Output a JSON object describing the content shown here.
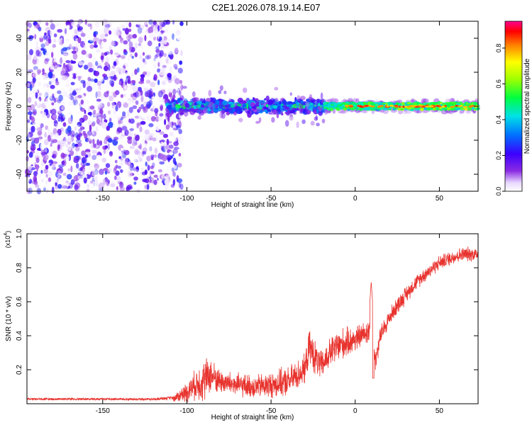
{
  "title": "C2E1.2026.078.19.14.E07",
  "chart_data": [
    {
      "type": "heatmap",
      "name": "spectrogram",
      "xlabel": "Height of straight line (km)",
      "ylabel": "Frequency (Hz)",
      "xlim": [
        -195,
        73
      ],
      "ylim": [
        -50,
        50
      ],
      "xticks": [
        -150,
        -100,
        -50,
        0,
        50
      ],
      "yticks": [
        -40,
        -20,
        0,
        20,
        40
      ],
      "description_regions": [
        {
          "x_range": [
            -195,
            -103
          ],
          "freq_range": [
            -50,
            50
          ],
          "amplitude": "low-scattered",
          "value_range": [
            0.0,
            0.2
          ]
        },
        {
          "x_range": [
            -112,
            -18
          ],
          "freq_range": [
            -6,
            6
          ],
          "amplitude": "medium",
          "value_range": [
            0.1,
            0.5
          ]
        },
        {
          "x_range": [
            -18,
            73
          ],
          "freq_range": [
            -2,
            2
          ],
          "amplitude": "high",
          "value_range": [
            0.4,
            0.95
          ]
        }
      ],
      "colorbar": {
        "label": "Normalized spectral amplitude",
        "range": [
          0.0,
          0.95
        ],
        "ticks": [
          0.0,
          0.2,
          0.4,
          0.6,
          0.8
        ]
      }
    },
    {
      "type": "line",
      "name": "snr",
      "xlabel": "Height of straight line (km)",
      "ylabel": "SNR (10 * v/v)",
      "exponent_label": "(x10",
      "exponent_power": "4",
      "exponent_close": ")",
      "color": "#e8332e",
      "xlim": [
        -195,
        73
      ],
      "ylim": [
        0,
        1.0
      ],
      "xticks": [
        -150,
        -100,
        -50,
        0,
        50
      ],
      "yticks": [
        0.2,
        0.4,
        0.6,
        0.8,
        1.0
      ],
      "x": [
        -195,
        -180,
        -160,
        -140,
        -120,
        -108,
        -100,
        -95,
        -90,
        -86,
        -80,
        -70,
        -60,
        -50,
        -40,
        -30,
        -27,
        -24,
        -20,
        -15,
        -10,
        -5,
        0,
        5,
        10,
        12,
        15,
        20,
        25,
        30,
        35,
        40,
        45,
        50,
        55,
        60,
        65,
        70,
        73
      ],
      "y": [
        0.025,
        0.025,
        0.025,
        0.025,
        0.025,
        0.03,
        0.07,
        0.11,
        0.14,
        0.17,
        0.13,
        0.11,
        0.1,
        0.11,
        0.13,
        0.2,
        0.34,
        0.27,
        0.22,
        0.3,
        0.34,
        0.36,
        0.38,
        0.41,
        0.44,
        0.25,
        0.4,
        0.5,
        0.58,
        0.64,
        0.7,
        0.75,
        0.79,
        0.83,
        0.85,
        0.87,
        0.88,
        0.88,
        0.88
      ],
      "noise_amplitude": [
        0.012,
        0.012,
        0.012,
        0.012,
        0.012,
        0.02,
        0.07,
        0.1,
        0.15,
        0.12,
        0.08,
        0.08,
        0.08,
        0.09,
        0.1,
        0.1,
        0.12,
        0.12,
        0.1,
        0.1,
        0.12,
        0.1,
        0.09,
        0.08,
        0.1,
        0.08,
        0.07,
        0.06,
        0.06,
        0.06,
        0.05,
        0.05,
        0.05,
        0.05,
        0.05,
        0.05,
        0.05,
        0.05,
        0.05
      ]
    }
  ]
}
